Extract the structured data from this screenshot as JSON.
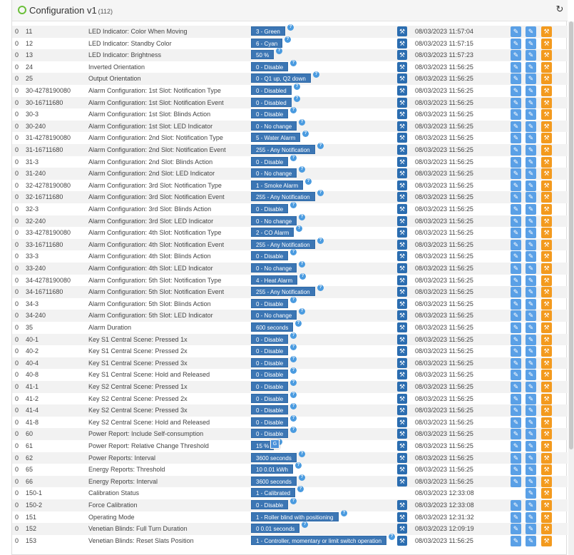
{
  "header": {
    "title": "Configuration v1",
    "count": "(112)",
    "refresh_icon": "refresh-icon"
  },
  "rows": [
    {
      "inst": "0",
      "id": "11",
      "name": "LED Indicator: Color When Moving",
      "value": "3 - Green",
      "date": "08/03/2023 11:57:04",
      "wrench": true,
      "e1": true
    },
    {
      "inst": "0",
      "id": "12",
      "name": "LED Indicator: Standby Color",
      "value": "6 - Cyan",
      "date": "08/03/2023 11:57:15",
      "wrench": true,
      "e1": true
    },
    {
      "inst": "0",
      "id": "13",
      "name": "LED Indicator: Brightness",
      "value": "50 %",
      "date": "08/03/2023 11:57:23",
      "wrench": true,
      "e1": true
    },
    {
      "inst": "0",
      "id": "24",
      "name": "Inverted Orientation",
      "value": "0 - Disable",
      "date": "08/03/2023 11:56:25",
      "wrench": true,
      "e1": true
    },
    {
      "inst": "0",
      "id": "25",
      "name": "Output Orientation",
      "value": "0 - Q1 up, Q2 down",
      "date": "08/03/2023 11:56:25",
      "wrench": true,
      "e1": true
    },
    {
      "inst": "0",
      "id": "30-4278190080",
      "name": "Alarm Configuration: 1st Slot: Notification Type",
      "value": "0 - Disabled",
      "date": "08/03/2023 11:56:25",
      "wrench": true,
      "e1": true
    },
    {
      "inst": "0",
      "id": "30-16711680",
      "name": "Alarm Configuration: 1st Slot: Notification Event",
      "value": "0 - Disabled",
      "date": "08/03/2023 11:56:25",
      "wrench": true,
      "e1": true
    },
    {
      "inst": "0",
      "id": "30-3",
      "name": "Alarm Configuration: 1st Slot: Blinds Action",
      "value": "0 - Disable",
      "date": "08/03/2023 11:56:25",
      "wrench": true,
      "e1": true
    },
    {
      "inst": "0",
      "id": "30-240",
      "name": "Alarm Configuration: 1st Slot: LED Indicator",
      "value": "0 - No change",
      "date": "08/03/2023 11:56:25",
      "wrench": true,
      "e1": true
    },
    {
      "inst": "0",
      "id": "31-4278190080",
      "name": "Alarm Configuration: 2nd Slot: Notification Type",
      "value": "5 - Water Alarm",
      "date": "08/03/2023 11:56:25",
      "wrench": true,
      "e1": true
    },
    {
      "inst": "0",
      "id": "31-16711680",
      "name": "Alarm Configuration: 2nd Slot: Notification Event",
      "value": "255 - Any Notification",
      "date": "08/03/2023 11:56:25",
      "wrench": true,
      "e1": true
    },
    {
      "inst": "0",
      "id": "31-3",
      "name": "Alarm Configuration: 2nd Slot: Blinds Action",
      "value": "0 - Disable",
      "date": "08/03/2023 11:56:25",
      "wrench": true,
      "e1": true
    },
    {
      "inst": "0",
      "id": "31-240",
      "name": "Alarm Configuration: 2nd Slot: LED Indicator",
      "value": "0 - No change",
      "date": "08/03/2023 11:56:25",
      "wrench": true,
      "e1": true
    },
    {
      "inst": "0",
      "id": "32-4278190080",
      "name": "Alarm Configuration: 3rd Slot: Notification Type",
      "value": "1 - Smoke Alarm",
      "date": "08/03/2023 11:56:25",
      "wrench": true,
      "e1": true
    },
    {
      "inst": "0",
      "id": "32-16711680",
      "name": "Alarm Configuration: 3rd Slot: Notification Event",
      "value": "255 - Any Notification",
      "date": "08/03/2023 11:56:25",
      "wrench": true,
      "e1": true
    },
    {
      "inst": "0",
      "id": "32-3",
      "name": "Alarm Configuration: 3rd Slot: Blinds Action",
      "value": "0 - Disable",
      "date": "08/03/2023 11:56:25",
      "wrench": true,
      "e1": true
    },
    {
      "inst": "0",
      "id": "32-240",
      "name": "Alarm Configuration: 3rd Slot: LED Indicator",
      "value": "0 - No change",
      "date": "08/03/2023 11:56:25",
      "wrench": true,
      "e1": true
    },
    {
      "inst": "0",
      "id": "33-4278190080",
      "name": "Alarm Configuration: 4th Slot: Notification Type",
      "value": "2 - CO Alarm",
      "date": "08/03/2023 11:56:25",
      "wrench": true,
      "e1": true
    },
    {
      "inst": "0",
      "id": "33-16711680",
      "name": "Alarm Configuration: 4th Slot: Notification Event",
      "value": "255 - Any Notification",
      "date": "08/03/2023 11:56:25",
      "wrench": true,
      "e1": true
    },
    {
      "inst": "0",
      "id": "33-3",
      "name": "Alarm Configuration: 4th Slot: Blinds Action",
      "value": "0 - Disable",
      "date": "08/03/2023 11:56:25",
      "wrench": true,
      "e1": true
    },
    {
      "inst": "0",
      "id": "33-240",
      "name": "Alarm Configuration: 4th Slot: LED Indicator",
      "value": "0 - No change",
      "date": "08/03/2023 11:56:25",
      "wrench": true,
      "e1": true
    },
    {
      "inst": "0",
      "id": "34-4278190080",
      "name": "Alarm Configuration: 5th Slot: Notification Type",
      "value": "4 - Heat Alarm",
      "date": "08/03/2023 11:56:25",
      "wrench": true,
      "e1": true
    },
    {
      "inst": "0",
      "id": "34-16711680",
      "name": "Alarm Configuration: 5th Slot: Notification Event",
      "value": "255 - Any Notification",
      "date": "08/03/2023 11:56:25",
      "wrench": true,
      "e1": true
    },
    {
      "inst": "0",
      "id": "34-3",
      "name": "Alarm Configuration: 5th Slot: Blinds Action",
      "value": "0 - Disable",
      "date": "08/03/2023 11:56:25",
      "wrench": true,
      "e1": true
    },
    {
      "inst": "0",
      "id": "34-240",
      "name": "Alarm Configuration: 5th Slot: LED Indicator",
      "value": "0 - No change",
      "date": "08/03/2023 11:56:25",
      "wrench": true,
      "e1": true
    },
    {
      "inst": "0",
      "id": "35",
      "name": "Alarm Duration",
      "value": "600 seconds",
      "date": "08/03/2023 11:56:25",
      "wrench": true,
      "e1": true
    },
    {
      "inst": "0",
      "id": "40-1",
      "name": "Key S1 Central Scene: Pressed 1x",
      "value": "0 - Disable",
      "date": "08/03/2023 11:56:25",
      "wrench": true,
      "e1": true
    },
    {
      "inst": "0",
      "id": "40-2",
      "name": "Key S1 Central Scene: Pressed 2x",
      "value": "0 - Disable",
      "date": "08/03/2023 11:56:25",
      "wrench": true,
      "e1": true
    },
    {
      "inst": "0",
      "id": "40-4",
      "name": "Key S1 Central Scene: Pressed 3x",
      "value": "0 - Disable",
      "date": "08/03/2023 11:56:25",
      "wrench": true,
      "e1": true
    },
    {
      "inst": "0",
      "id": "40-8",
      "name": "Key S1 Central Scene: Hold and Released",
      "value": "0 - Disable",
      "date": "08/03/2023 11:56:25",
      "wrench": true,
      "e1": true
    },
    {
      "inst": "0",
      "id": "41-1",
      "name": "Key S2 Central Scene: Pressed 1x",
      "value": "0 - Disable",
      "date": "08/03/2023 11:56:25",
      "wrench": true,
      "e1": true
    },
    {
      "inst": "0",
      "id": "41-2",
      "name": "Key S2 Central Scene: Pressed 2x",
      "value": "0 - Disable",
      "date": "08/03/2023 11:56:25",
      "wrench": true,
      "e1": true
    },
    {
      "inst": "0",
      "id": "41-4",
      "name": "Key S2 Central Scene: Pressed 3x",
      "value": "0 - Disable",
      "date": "08/03/2023 11:56:25",
      "wrench": true,
      "e1": true
    },
    {
      "inst": "0",
      "id": "41-8",
      "name": "Key S2 Central Scene: Hold and Released",
      "value": "0 - Disable",
      "date": "08/03/2023 11:56:25",
      "wrench": true,
      "e1": true
    },
    {
      "inst": "0",
      "id": "60",
      "name": "Power Report: Include Self-consumption",
      "value": "0 - Disable",
      "date": "08/03/2023 11:56:25",
      "wrench": true,
      "e1": true
    },
    {
      "inst": "0",
      "id": "61",
      "name": "Power Report: Relative Change Threshold",
      "value": "15 %",
      "date": "08/03/2023 11:56:25",
      "wrench": true,
      "e1": true
    },
    {
      "inst": "0",
      "id": "62",
      "name": "Power Reports: Interval",
      "value": "3600 seconds",
      "date": "08/03/2023 11:56:25",
      "wrench": true,
      "e1": true
    },
    {
      "inst": "0",
      "id": "65",
      "name": "Energy Reports: Threshold",
      "value": "10 0.01 kWh",
      "date": "08/03/2023 11:56:25",
      "wrench": true,
      "e1": true
    },
    {
      "inst": "0",
      "id": "66",
      "name": "Energy Reports: Interval",
      "value": "3600 seconds",
      "date": "08/03/2023 11:56:25",
      "wrench": true,
      "e1": true
    },
    {
      "inst": "0",
      "id": "150-1",
      "name": "Calibration Status",
      "value": "1 - Calibrated",
      "date": "08/03/2023 12:33:08",
      "wrench": false,
      "e1": false
    },
    {
      "inst": "0",
      "id": "150-2",
      "name": "Force Calibration",
      "value": "0 - Disable",
      "date": "08/03/2023 12:33:08",
      "wrench": true,
      "e1": true
    },
    {
      "inst": "0",
      "id": "151",
      "name": "Operating Mode",
      "value": "1 - Roller blind with positioning",
      "date": "08/03/2023 12:31:32",
      "wrench": true,
      "e1": true
    },
    {
      "inst": "0",
      "id": "152",
      "name": "Venetian Blinds: Full Turn Duration",
      "value": "0 0.01 seconds",
      "date": "08/03/2023 12:09:19",
      "wrench": true,
      "e1": true
    },
    {
      "inst": "0",
      "id": "153",
      "name": "Venetian Blinds: Reset Slats Position",
      "value": "1 - Controller, momentary or limit switch operation",
      "date": "08/03/2023 11:56:25",
      "wrench": true,
      "e1": true
    }
  ],
  "icons": {
    "help": "?",
    "wrench": "✎",
    "edit": "✎",
    "config": "⚙"
  },
  "tooltip": {
    "text": "G"
  },
  "colors": {
    "value_bg": "#3c76b4",
    "wrench_bg": "#2b6db0",
    "edit_bg": "#5aa0e6",
    "config_bg": "#f39a1e",
    "status_ring": "#6bbf3a"
  }
}
